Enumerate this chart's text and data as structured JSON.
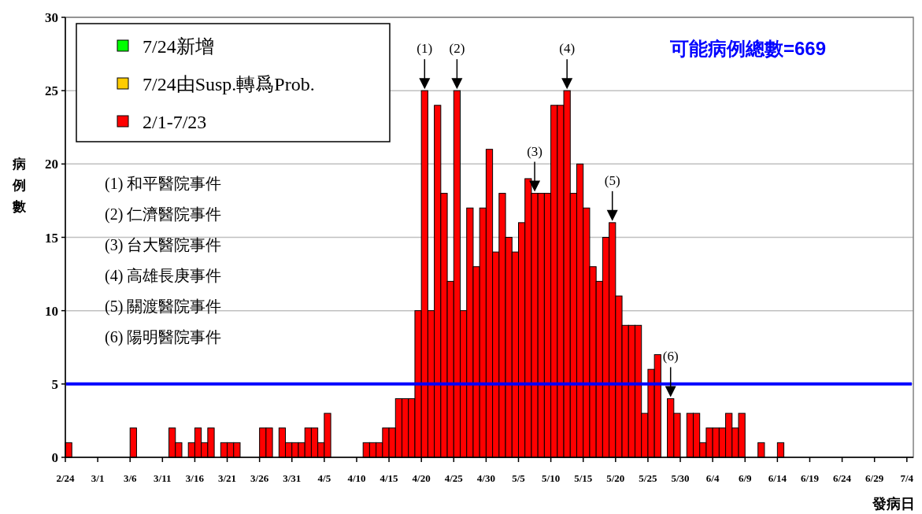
{
  "chart_data": {
    "type": "bar",
    "xlabel": "發病日",
    "ylabel": "病例數",
    "x": [
      "--02-24",
      "--02-25",
      "--02-26",
      "--02-27",
      "--02-28",
      "--03-01",
      "--03-02",
      "--03-03",
      "--03-04",
      "--03-05",
      "--03-06",
      "--03-07",
      "--03-08",
      "--03-09",
      "--03-10",
      "--03-11",
      "--03-12",
      "--03-13",
      "--03-14",
      "--03-15",
      "--03-16",
      "--03-17",
      "--03-18",
      "--03-19",
      "--03-20",
      "--03-21",
      "--03-22",
      "--03-23",
      "--03-24",
      "--03-25",
      "--03-26",
      "--03-27",
      "--03-28",
      "--03-29",
      "--03-30",
      "--03-31",
      "--04-01",
      "--04-02",
      "--04-03",
      "--04-04",
      "--04-05",
      "--04-06",
      "--04-07",
      "--04-08",
      "--04-09",
      "--04-10",
      "--04-11",
      "--04-12",
      "--04-13",
      "--04-14",
      "--04-15",
      "--04-16",
      "--04-17",
      "--04-18",
      "--04-19",
      "--04-20",
      "--04-21",
      "--04-22",
      "--04-23",
      "--04-24",
      "--04-25",
      "--04-26",
      "--04-27",
      "--04-28",
      "--04-29",
      "--04-30",
      "--05-01",
      "--05-02",
      "--05-03",
      "--05-04",
      "--05-05",
      "--05-06",
      "--05-07",
      "--05-08",
      "--05-09",
      "--05-10",
      "--05-11",
      "--05-12",
      "--05-13",
      "--05-14",
      "--05-15",
      "--05-16",
      "--05-17",
      "--05-18",
      "--05-19",
      "--05-20",
      "--05-21",
      "--05-22",
      "--05-23",
      "--05-24",
      "--05-25",
      "--05-26",
      "--05-27",
      "--05-28",
      "--05-29",
      "--05-30",
      "--05-31",
      "--06-01",
      "--06-02",
      "--06-03",
      "--06-04",
      "--06-05",
      "--06-06",
      "--06-07",
      "--06-08",
      "--06-09",
      "--06-10",
      "--06-11",
      "--06-12",
      "--06-13",
      "--06-14",
      "--06-15",
      "--06-16",
      "--06-17",
      "--06-18",
      "--06-19",
      "--06-20",
      "--06-21",
      "--06-22",
      "--06-23",
      "--06-24",
      "--06-25",
      "--06-26",
      "--06-27",
      "--06-28",
      "--06-29",
      "--06-30",
      "--07-01",
      "--07-02",
      "--07-03",
      "--07-04"
    ],
    "series": [
      {
        "name": "2/1-7/23",
        "color": "#ff0000",
        "values": [
          1,
          0,
          0,
          0,
          0,
          0,
          0,
          0,
          0,
          0,
          2,
          0,
          0,
          0,
          0,
          0,
          2,
          1,
          0,
          1,
          2,
          1,
          2,
          0,
          1,
          1,
          1,
          0,
          0,
          0,
          2,
          2,
          0,
          2,
          1,
          1,
          1,
          2,
          2,
          1,
          3,
          0,
          0,
          0,
          0,
          0,
          1,
          1,
          1,
          2,
          2,
          4,
          4,
          4,
          10,
          25,
          10,
          24,
          18,
          12,
          25,
          10,
          17,
          13,
          17,
          21,
          14,
          18,
          15,
          14,
          16,
          19,
          18,
          18,
          18,
          24,
          24,
          25,
          18,
          20,
          17,
          13,
          12,
          15,
          16,
          11,
          9,
          9,
          9,
          3,
          6,
          7,
          0,
          4,
          3,
          0,
          3,
          3,
          1,
          2,
          2,
          2,
          3,
          2,
          3,
          0,
          0,
          1,
          0,
          0,
          1,
          0,
          0,
          0,
          0,
          0,
          0,
          0,
          0,
          0,
          0,
          0,
          0,
          0,
          0,
          0,
          0,
          0,
          0,
          0,
          0
        ]
      },
      {
        "name": "7/24由Susp.轉爲Prob.",
        "color": "#ffcc00",
        "values": [
          0,
          0,
          0,
          0,
          0,
          0,
          0,
          0,
          0,
          0,
          0,
          0,
          0,
          0,
          0,
          0,
          0,
          0,
          0,
          0,
          0,
          0,
          0,
          0,
          0,
          0,
          0,
          0,
          0,
          0,
          0,
          0,
          0,
          0,
          0,
          0,
          0,
          0,
          0,
          0,
          0,
          0,
          0,
          0,
          0,
          0,
          0,
          0,
          0,
          0,
          0,
          0,
          0,
          0,
          0,
          0,
          0,
          0,
          0,
          0,
          0,
          0,
          0,
          0,
          0,
          0,
          0,
          0,
          0,
          0,
          0,
          0,
          0,
          0,
          0,
          0,
          0,
          0,
          0,
          0,
          0,
          0,
          0,
          0,
          0,
          0,
          0,
          0,
          0,
          0,
          0,
          0,
          0,
          0,
          0,
          0,
          0,
          0,
          0,
          0,
          0,
          0,
          0,
          0,
          0,
          0,
          0,
          0,
          0,
          0,
          0,
          0,
          0,
          0,
          0,
          0,
          0,
          0,
          0,
          0,
          0,
          0,
          0,
          0,
          0,
          0,
          0,
          0,
          0,
          0,
          0
        ]
      },
      {
        "name": "7/24新增",
        "color": "#00ff00",
        "values": [
          0,
          0,
          0,
          0,
          0,
          0,
          0,
          0,
          0,
          0,
          0,
          0,
          0,
          0,
          0,
          0,
          0,
          0,
          0,
          0,
          0,
          0,
          0,
          0,
          0,
          0,
          0,
          0,
          0,
          0,
          0,
          0,
          0,
          0,
          0,
          0,
          0,
          0,
          0,
          0,
          0,
          0,
          0,
          0,
          0,
          0,
          0,
          0,
          0,
          0,
          0,
          0,
          0,
          0,
          0,
          0,
          0,
          0,
          0,
          0,
          0,
          0,
          0,
          0,
          0,
          0,
          0,
          0,
          0,
          0,
          0,
          0,
          0,
          0,
          0,
          0,
          0,
          0,
          0,
          0,
          0,
          0,
          0,
          0,
          0,
          0,
          0,
          0,
          0,
          0,
          0,
          0,
          0,
          0,
          0,
          0,
          0,
          0,
          0,
          0,
          0,
          0,
          0,
          0,
          0,
          0,
          0,
          0,
          0,
          0,
          0,
          0,
          0,
          0,
          0,
          0,
          0,
          0,
          0,
          0,
          0,
          0,
          0,
          0,
          0,
          0,
          0,
          0,
          0,
          0,
          0
        ]
      }
    ],
    "xlim": [
      "--02-24",
      "--07-05"
    ],
    "xticks": [
      {
        "value": "--02-24",
        "label": "2/24"
      },
      {
        "value": "--03-01",
        "label": "3/1"
      },
      {
        "value": "--03-06",
        "label": "3/6"
      },
      {
        "value": "--03-11",
        "label": "3/11"
      },
      {
        "value": "--03-16",
        "label": "3/16"
      },
      {
        "value": "--03-21",
        "label": "3/21"
      },
      {
        "value": "--03-26",
        "label": "3/26"
      },
      {
        "value": "--03-31",
        "label": "3/31"
      },
      {
        "value": "--04-05",
        "label": "4/5"
      },
      {
        "value": "--04-10",
        "label": "4/10"
      },
      {
        "value": "--04-15",
        "label": "4/15"
      },
      {
        "value": "--04-20",
        "label": "4/20"
      },
      {
        "value": "--04-25",
        "label": "4/25"
      },
      {
        "value": "--04-30",
        "label": "4/30"
      },
      {
        "value": "--05-05",
        "label": "5/5"
      },
      {
        "value": "--05-10",
        "label": "5/10"
      },
      {
        "value": "--05-15",
        "label": "5/15"
      },
      {
        "value": "--05-20",
        "label": "5/20"
      },
      {
        "value": "--05-25",
        "label": "5/25"
      },
      {
        "value": "--05-30",
        "label": "5/30"
      },
      {
        "value": "--06-04",
        "label": "6/4"
      },
      {
        "value": "--06-09",
        "label": "6/9"
      },
      {
        "value": "--06-14",
        "label": "6/14"
      },
      {
        "value": "--06-19",
        "label": "6/19"
      },
      {
        "value": "--06-24",
        "label": "6/24"
      },
      {
        "value": "--06-29",
        "label": "6/29"
      },
      {
        "value": "--07-04",
        "label": "7/4"
      }
    ],
    "ylim": [
      0,
      30
    ],
    "yticks": [
      0,
      5,
      10,
      15,
      20,
      25,
      30
    ],
    "grid": "y",
    "legend": "top left",
    "ref_lines": [
      {
        "axis": "y",
        "value": 5,
        "color": "#0000ff"
      }
    ],
    "annotations": [
      "可能病例總數=669",
      "(1) 和平醫院事件",
      "(2) 仁濟醫院事件",
      "(3) 台大醫院事件",
      "(4) 高雄長庚事件",
      "(5) 關渡醫院事件",
      "(6) 陽明醫院事件",
      {
        "text": "(1)",
        "x": "--04-20",
        "y": 25
      },
      {
        "text": "(2)",
        "x": "--04-25",
        "y": 25
      },
      {
        "text": "(3)",
        "x": "--05-07",
        "y": 18
      },
      {
        "text": "(4)",
        "x": "--05-12",
        "y": 25
      },
      {
        "text": "(5)",
        "x": "--05-19",
        "y": 16
      },
      {
        "text": "(6)",
        "x": "--05-28",
        "y": 4
      }
    ]
  }
}
